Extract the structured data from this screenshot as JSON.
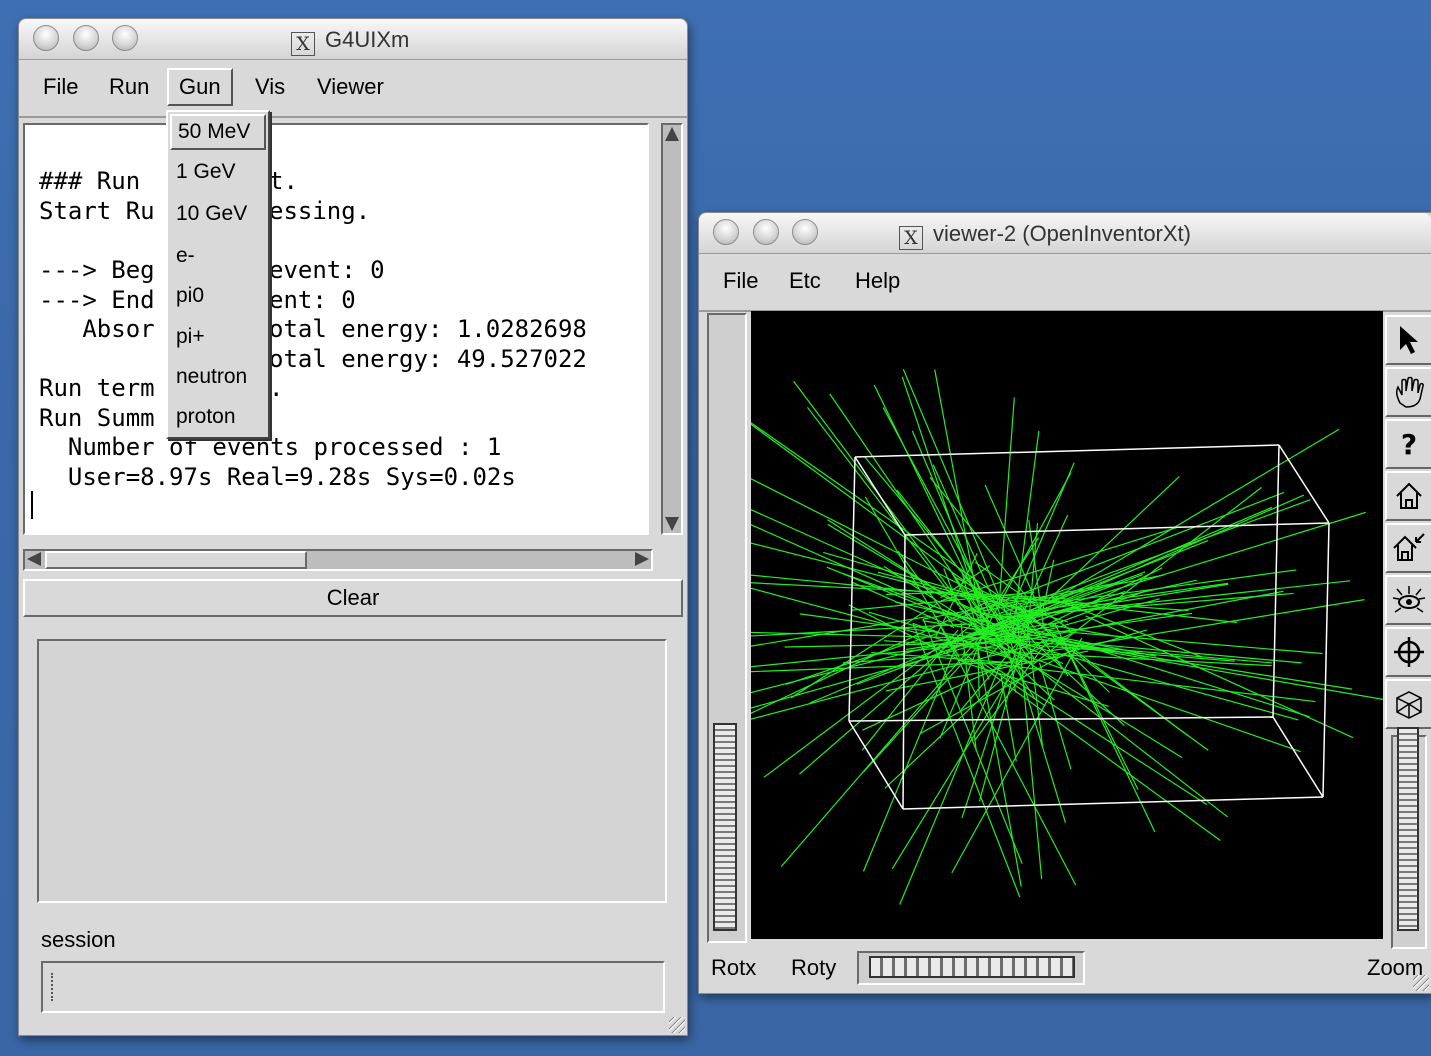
{
  "g4_window": {
    "title": "G4UIXm",
    "menus": [
      "File",
      "Run",
      "Gun",
      "Vis",
      "Viewer"
    ],
    "console_lines": [
      "### Run ",
      "Start Ru",
      "---> Beg",
      "---> End",
      "   Absor",
      "",
      "Run term",
      "Run Summ",
      "  Number of events processed : 1",
      "  User=8.97s Real=9.28s Sys=0.02s"
    ],
    "console_right_lines": [
      "t.",
      "essing.",
      "event: 0",
      "ent: 0",
      "otal energy: 1.0282698",
      "otal energy: 49.527022",
      "."
    ],
    "gun_menu_items": [
      "50 MeV",
      "1 GeV",
      "10 GeV",
      "e-",
      "pi0",
      "pi+",
      "neutron",
      "proton"
    ],
    "clear_label": "Clear",
    "session_label": "session",
    "session_value": ""
  },
  "viewer_window": {
    "title": "viewer-2 (OpenInventorXt)",
    "menus": [
      "File",
      "Etc",
      "Help"
    ],
    "tools": [
      "pointer-icon",
      "hand-icon",
      "help-icon",
      "home-icon",
      "set-home-icon",
      "view-all-icon",
      "seek-icon",
      "projection-icon"
    ],
    "rotx_label": "Rotx",
    "roty_label": "Roty",
    "zoom_label": "Zoom",
    "track_color": "#22ee22",
    "box_color": "#ffffff"
  }
}
